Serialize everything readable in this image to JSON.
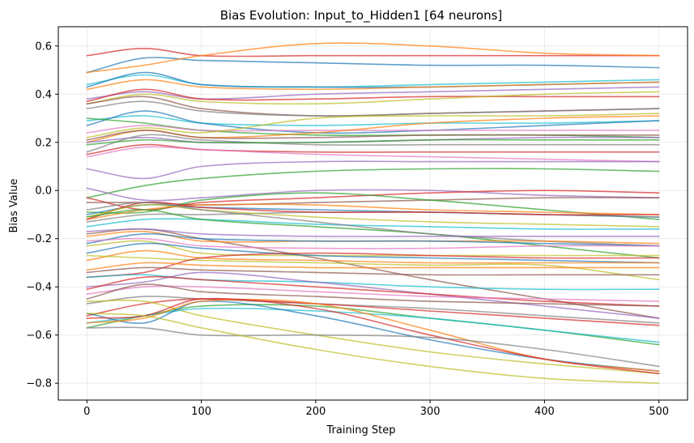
{
  "chart_data": {
    "type": "line",
    "title": "Bias Evolution: Input_to_Hidden1 [64 neurons]",
    "xlabel": "Training Step",
    "ylabel": "Bias Value",
    "xlim": [
      -25,
      525
    ],
    "ylim": [
      -0.87,
      0.68
    ],
    "x": [
      0,
      50,
      100,
      200,
      300,
      400,
      500
    ],
    "xticks": [
      0,
      100,
      200,
      300,
      400,
      500
    ],
    "yticks": [
      -0.8,
      -0.6,
      -0.4,
      -0.2,
      0.0,
      0.2,
      0.4,
      0.6
    ],
    "grid": true,
    "legend": "none",
    "series": [
      {
        "color": "#d62728",
        "values": [
          0.56,
          0.59,
          0.56,
          0.56,
          0.56,
          0.56,
          0.56
        ]
      },
      {
        "color": "#1f77b4",
        "values": [
          0.49,
          0.55,
          0.54,
          0.53,
          0.52,
          0.52,
          0.51
        ]
      },
      {
        "color": "#ff7f0e",
        "values": [
          0.49,
          0.52,
          0.56,
          0.61,
          0.6,
          0.57,
          0.56
        ]
      },
      {
        "color": "#17becf",
        "values": [
          0.44,
          0.48,
          0.44,
          0.43,
          0.44,
          0.45,
          0.46
        ]
      },
      {
        "color": "#1f77b4",
        "values": [
          0.43,
          0.49,
          0.44,
          0.43,
          0.43,
          0.44,
          0.45
        ]
      },
      {
        "color": "#ff7f0e",
        "values": [
          0.42,
          0.46,
          0.43,
          0.42,
          0.43,
          0.44,
          0.45
        ]
      },
      {
        "color": "#9467bd",
        "values": [
          0.38,
          0.41,
          0.38,
          0.4,
          0.41,
          0.42,
          0.43
        ]
      },
      {
        "color": "#d62728",
        "values": [
          0.37,
          0.42,
          0.38,
          0.38,
          0.39,
          0.39,
          0.39
        ]
      },
      {
        "color": "#bcbd22",
        "values": [
          0.36,
          0.4,
          0.37,
          0.36,
          0.38,
          0.4,
          0.41
        ]
      },
      {
        "color": "#8c564b",
        "values": [
          0.36,
          0.39,
          0.34,
          0.31,
          0.32,
          0.33,
          0.34
        ]
      },
      {
        "color": "#7f7f7f",
        "values": [
          0.34,
          0.37,
          0.33,
          0.31,
          0.32,
          0.33,
          0.34
        ]
      },
      {
        "color": "#17becf",
        "values": [
          0.29,
          0.31,
          0.28,
          0.27,
          0.28,
          0.28,
          0.29
        ]
      },
      {
        "color": "#1f77b4",
        "values": [
          0.27,
          0.33,
          0.28,
          0.24,
          0.25,
          0.27,
          0.29
        ]
      },
      {
        "color": "#2ca02c",
        "values": [
          0.3,
          0.28,
          0.25,
          0.23,
          0.23,
          0.23,
          0.22
        ]
      },
      {
        "color": "#e377c2",
        "values": [
          0.24,
          0.27,
          0.25,
          0.25,
          0.25,
          0.25,
          0.25
        ]
      },
      {
        "color": "#bcbd22",
        "values": [
          0.22,
          0.26,
          0.24,
          0.3,
          0.31,
          0.31,
          0.32
        ]
      },
      {
        "color": "#ff7f0e",
        "values": [
          0.2,
          0.25,
          0.22,
          0.24,
          0.28,
          0.3,
          0.31
        ]
      },
      {
        "color": "#8c564b",
        "values": [
          0.21,
          0.25,
          0.22,
          0.22,
          0.23,
          0.23,
          0.23
        ]
      },
      {
        "color": "#9467bd",
        "values": [
          0.2,
          0.22,
          0.2,
          0.2,
          0.21,
          0.22,
          0.22
        ]
      },
      {
        "color": "#7f7f7f",
        "values": [
          0.16,
          0.23,
          0.21,
          0.19,
          0.19,
          0.19,
          0.19
        ]
      },
      {
        "color": "#2ca02c",
        "values": [
          0.19,
          0.21,
          0.2,
          0.2,
          0.21,
          0.21,
          0.21
        ]
      },
      {
        "color": "#d62728",
        "values": [
          0.15,
          0.19,
          0.17,
          0.16,
          0.16,
          0.16,
          0.16
        ]
      },
      {
        "color": "#e377c2",
        "values": [
          0.14,
          0.18,
          0.17,
          0.15,
          0.14,
          0.13,
          0.12
        ]
      },
      {
        "color": "#9467bd",
        "values": [
          0.09,
          0.05,
          0.1,
          0.12,
          0.12,
          0.12,
          0.12
        ]
      },
      {
        "color": "#2ca02c",
        "values": [
          -0.03,
          0.02,
          0.05,
          0.08,
          0.09,
          0.09,
          0.08
        ]
      },
      {
        "color": "#9467bd",
        "values": [
          0.01,
          -0.04,
          -0.03,
          0.0,
          0.0,
          -0.02,
          -0.03
        ]
      },
      {
        "color": "#d62728",
        "values": [
          -0.03,
          -0.08,
          -0.05,
          -0.03,
          -0.01,
          0.0,
          -0.01
        ]
      },
      {
        "color": "#8c564b",
        "values": [
          -0.05,
          -0.05,
          -0.06,
          -0.05,
          -0.04,
          -0.03,
          -0.03
        ]
      },
      {
        "color": "#2ca02c",
        "values": [
          -0.09,
          -0.09,
          -0.04,
          -0.01,
          -0.04,
          -0.08,
          -0.12
        ]
      },
      {
        "color": "#1f77b4",
        "values": [
          -0.1,
          -0.06,
          -0.07,
          -0.08,
          -0.09,
          -0.1,
          -0.11
        ]
      },
      {
        "color": "#ff7f0e",
        "values": [
          -0.12,
          -0.08,
          -0.06,
          -0.06,
          -0.08,
          -0.09,
          -0.1
        ]
      },
      {
        "color": "#7f7f7f",
        "values": [
          -0.13,
          -0.1,
          -0.1,
          -0.09,
          -0.09,
          -0.1,
          -0.11
        ]
      },
      {
        "color": "#d62728",
        "values": [
          -0.12,
          -0.05,
          -0.07,
          -0.09,
          -0.09,
          -0.1,
          -0.1
        ]
      },
      {
        "color": "#bcbd22",
        "values": [
          -0.11,
          -0.06,
          -0.08,
          -0.11,
          -0.13,
          -0.14,
          -0.15
        ]
      },
      {
        "color": "#17becf",
        "values": [
          -0.15,
          -0.12,
          -0.12,
          -0.14,
          -0.15,
          -0.16,
          -0.16
        ]
      },
      {
        "color": "#2ca02c",
        "values": [
          -0.11,
          -0.08,
          -0.12,
          -0.15,
          -0.18,
          -0.23,
          -0.28
        ]
      },
      {
        "color": "#7f7f7f",
        "values": [
          -0.08,
          -0.05,
          -0.08,
          -0.13,
          -0.18,
          -0.21,
          -0.23
        ]
      },
      {
        "color": "#8c564b",
        "values": [
          -0.18,
          -0.16,
          -0.2,
          -0.28,
          -0.37,
          -0.45,
          -0.53
        ]
      },
      {
        "color": "#ff7f0e",
        "values": [
          -0.19,
          -0.17,
          -0.21,
          -0.21,
          -0.21,
          -0.21,
          -0.22
        ]
      },
      {
        "color": "#9467bd",
        "values": [
          -0.17,
          -0.16,
          -0.18,
          -0.19,
          -0.19,
          -0.19,
          -0.19
        ]
      },
      {
        "color": "#1f77b4",
        "values": [
          -0.22,
          -0.18,
          -0.2,
          -0.21,
          -0.21,
          -0.22,
          -0.23
        ]
      },
      {
        "color": "#e377c2",
        "values": [
          -0.21,
          -0.2,
          -0.23,
          -0.24,
          -0.24,
          -0.23,
          -0.23
        ]
      },
      {
        "color": "#bcbd22",
        "values": [
          -0.23,
          -0.21,
          -0.26,
          -0.27,
          -0.27,
          -0.27,
          -0.27
        ]
      },
      {
        "color": "#1f77b4",
        "values": [
          -0.26,
          -0.22,
          -0.24,
          -0.27,
          -0.28,
          -0.29,
          -0.3
        ]
      },
      {
        "color": "#ff7f0e",
        "values": [
          -0.29,
          -0.25,
          -0.28,
          -0.29,
          -0.3,
          -0.3,
          -0.3
        ]
      },
      {
        "color": "#bcbd22",
        "values": [
          -0.27,
          -0.28,
          -0.29,
          -0.3,
          -0.31,
          -0.31,
          -0.37
        ]
      },
      {
        "color": "#d62728",
        "values": [
          -0.36,
          -0.34,
          -0.28,
          -0.26,
          -0.27,
          -0.28,
          -0.28
        ]
      },
      {
        "color": "#ff7f0e",
        "values": [
          -0.33,
          -0.3,
          -0.31,
          -0.32,
          -0.32,
          -0.32,
          -0.32
        ]
      },
      {
        "color": "#8c564b",
        "values": [
          -0.34,
          -0.32,
          -0.33,
          -0.34,
          -0.35,
          -0.35,
          -0.35
        ]
      },
      {
        "color": "#17becf",
        "values": [
          -0.36,
          -0.35,
          -0.37,
          -0.38,
          -0.4,
          -0.41,
          -0.41
        ]
      },
      {
        "color": "#9467bd",
        "values": [
          -0.4,
          -0.38,
          -0.34,
          -0.38,
          -0.43,
          -0.48,
          -0.53
        ]
      },
      {
        "color": "#d62728",
        "values": [
          -0.41,
          -0.36,
          -0.37,
          -0.4,
          -0.43,
          -0.46,
          -0.48
        ]
      },
      {
        "color": "#e377c2",
        "values": [
          -0.43,
          -0.4,
          -0.4,
          -0.42,
          -0.44,
          -0.45,
          -0.46
        ]
      },
      {
        "color": "#8c564b",
        "values": [
          -0.45,
          -0.39,
          -0.42,
          -0.44,
          -0.46,
          -0.47,
          -0.48
        ]
      },
      {
        "color": "#7f7f7f",
        "values": [
          -0.47,
          -0.44,
          -0.45,
          -0.47,
          -0.49,
          -0.52,
          -0.55
        ]
      },
      {
        "color": "#d62728",
        "values": [
          -0.52,
          -0.47,
          -0.45,
          -0.47,
          -0.5,
          -0.53,
          -0.56
        ]
      },
      {
        "color": "#bcbd22",
        "values": [
          -0.46,
          -0.46,
          -0.52,
          -0.6,
          -0.67,
          -0.72,
          -0.76
        ]
      },
      {
        "color": "#2ca02c",
        "values": [
          -0.57,
          -0.52,
          -0.48,
          -0.48,
          -0.53,
          -0.58,
          -0.64
        ]
      },
      {
        "color": "#17becf",
        "values": [
          -0.55,
          -0.52,
          -0.49,
          -0.5,
          -0.53,
          -0.58,
          -0.63
        ]
      },
      {
        "color": "#1f77b4",
        "values": [
          -0.51,
          -0.55,
          -0.46,
          -0.52,
          -0.62,
          -0.7,
          -0.75
        ]
      },
      {
        "color": "#ff7f0e",
        "values": [
          -0.55,
          -0.53,
          -0.46,
          -0.47,
          -0.58,
          -0.7,
          -0.75
        ]
      },
      {
        "color": "#d62728",
        "values": [
          -0.53,
          -0.52,
          -0.45,
          -0.49,
          -0.6,
          -0.7,
          -0.76
        ]
      },
      {
        "color": "#7f7f7f",
        "values": [
          -0.57,
          -0.57,
          -0.6,
          -0.6,
          -0.61,
          -0.66,
          -0.73
        ]
      },
      {
        "color": "#bcbd22",
        "values": [
          -0.51,
          -0.52,
          -0.57,
          -0.66,
          -0.73,
          -0.78,
          -0.8
        ]
      }
    ]
  }
}
